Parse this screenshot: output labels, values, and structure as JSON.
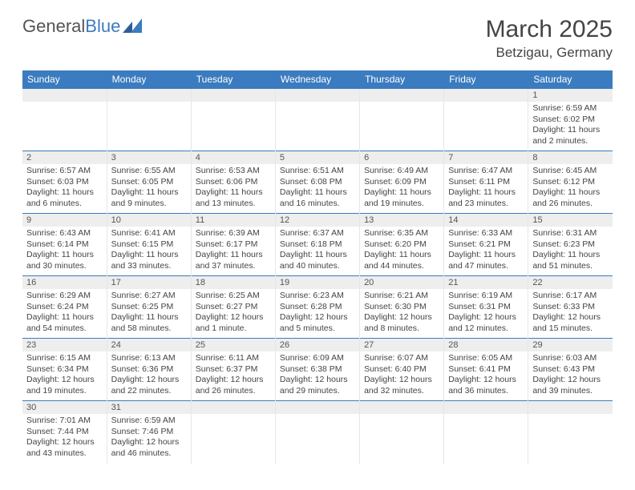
{
  "brand": {
    "part1": "General",
    "part2": "Blue"
  },
  "title": {
    "month": "March 2025",
    "location": "Betzigau, Germany"
  },
  "colors": {
    "accent": "#3b7bbf",
    "dayHeaderBg": "#eeeeee",
    "text": "#444"
  },
  "dayHeaders": [
    "Sunday",
    "Monday",
    "Tuesday",
    "Wednesday",
    "Thursday",
    "Friday",
    "Saturday"
  ],
  "weeks": [
    [
      {
        "blank": true
      },
      {
        "blank": true
      },
      {
        "blank": true
      },
      {
        "blank": true
      },
      {
        "blank": true
      },
      {
        "blank": true
      },
      {
        "n": "1",
        "sr": "Sunrise: 6:59 AM",
        "ss": "Sunset: 6:02 PM",
        "dl": "Daylight: 11 hours and 2 minutes."
      }
    ],
    [
      {
        "n": "2",
        "sr": "Sunrise: 6:57 AM",
        "ss": "Sunset: 6:03 PM",
        "dl": "Daylight: 11 hours and 6 minutes."
      },
      {
        "n": "3",
        "sr": "Sunrise: 6:55 AM",
        "ss": "Sunset: 6:05 PM",
        "dl": "Daylight: 11 hours and 9 minutes."
      },
      {
        "n": "4",
        "sr": "Sunrise: 6:53 AM",
        "ss": "Sunset: 6:06 PM",
        "dl": "Daylight: 11 hours and 13 minutes."
      },
      {
        "n": "5",
        "sr": "Sunrise: 6:51 AM",
        "ss": "Sunset: 6:08 PM",
        "dl": "Daylight: 11 hours and 16 minutes."
      },
      {
        "n": "6",
        "sr": "Sunrise: 6:49 AM",
        "ss": "Sunset: 6:09 PM",
        "dl": "Daylight: 11 hours and 19 minutes."
      },
      {
        "n": "7",
        "sr": "Sunrise: 6:47 AM",
        "ss": "Sunset: 6:11 PM",
        "dl": "Daylight: 11 hours and 23 minutes."
      },
      {
        "n": "8",
        "sr": "Sunrise: 6:45 AM",
        "ss": "Sunset: 6:12 PM",
        "dl": "Daylight: 11 hours and 26 minutes."
      }
    ],
    [
      {
        "n": "9",
        "sr": "Sunrise: 6:43 AM",
        "ss": "Sunset: 6:14 PM",
        "dl": "Daylight: 11 hours and 30 minutes."
      },
      {
        "n": "10",
        "sr": "Sunrise: 6:41 AM",
        "ss": "Sunset: 6:15 PM",
        "dl": "Daylight: 11 hours and 33 minutes."
      },
      {
        "n": "11",
        "sr": "Sunrise: 6:39 AM",
        "ss": "Sunset: 6:17 PM",
        "dl": "Daylight: 11 hours and 37 minutes."
      },
      {
        "n": "12",
        "sr": "Sunrise: 6:37 AM",
        "ss": "Sunset: 6:18 PM",
        "dl": "Daylight: 11 hours and 40 minutes."
      },
      {
        "n": "13",
        "sr": "Sunrise: 6:35 AM",
        "ss": "Sunset: 6:20 PM",
        "dl": "Daylight: 11 hours and 44 minutes."
      },
      {
        "n": "14",
        "sr": "Sunrise: 6:33 AM",
        "ss": "Sunset: 6:21 PM",
        "dl": "Daylight: 11 hours and 47 minutes."
      },
      {
        "n": "15",
        "sr": "Sunrise: 6:31 AM",
        "ss": "Sunset: 6:23 PM",
        "dl": "Daylight: 11 hours and 51 minutes."
      }
    ],
    [
      {
        "n": "16",
        "sr": "Sunrise: 6:29 AM",
        "ss": "Sunset: 6:24 PM",
        "dl": "Daylight: 11 hours and 54 minutes."
      },
      {
        "n": "17",
        "sr": "Sunrise: 6:27 AM",
        "ss": "Sunset: 6:25 PM",
        "dl": "Daylight: 11 hours and 58 minutes."
      },
      {
        "n": "18",
        "sr": "Sunrise: 6:25 AM",
        "ss": "Sunset: 6:27 PM",
        "dl": "Daylight: 12 hours and 1 minute."
      },
      {
        "n": "19",
        "sr": "Sunrise: 6:23 AM",
        "ss": "Sunset: 6:28 PM",
        "dl": "Daylight: 12 hours and 5 minutes."
      },
      {
        "n": "20",
        "sr": "Sunrise: 6:21 AM",
        "ss": "Sunset: 6:30 PM",
        "dl": "Daylight: 12 hours and 8 minutes."
      },
      {
        "n": "21",
        "sr": "Sunrise: 6:19 AM",
        "ss": "Sunset: 6:31 PM",
        "dl": "Daylight: 12 hours and 12 minutes."
      },
      {
        "n": "22",
        "sr": "Sunrise: 6:17 AM",
        "ss": "Sunset: 6:33 PM",
        "dl": "Daylight: 12 hours and 15 minutes."
      }
    ],
    [
      {
        "n": "23",
        "sr": "Sunrise: 6:15 AM",
        "ss": "Sunset: 6:34 PM",
        "dl": "Daylight: 12 hours and 19 minutes."
      },
      {
        "n": "24",
        "sr": "Sunrise: 6:13 AM",
        "ss": "Sunset: 6:36 PM",
        "dl": "Daylight: 12 hours and 22 minutes."
      },
      {
        "n": "25",
        "sr": "Sunrise: 6:11 AM",
        "ss": "Sunset: 6:37 PM",
        "dl": "Daylight: 12 hours and 26 minutes."
      },
      {
        "n": "26",
        "sr": "Sunrise: 6:09 AM",
        "ss": "Sunset: 6:38 PM",
        "dl": "Daylight: 12 hours and 29 minutes."
      },
      {
        "n": "27",
        "sr": "Sunrise: 6:07 AM",
        "ss": "Sunset: 6:40 PM",
        "dl": "Daylight: 12 hours and 32 minutes."
      },
      {
        "n": "28",
        "sr": "Sunrise: 6:05 AM",
        "ss": "Sunset: 6:41 PM",
        "dl": "Daylight: 12 hours and 36 minutes."
      },
      {
        "n": "29",
        "sr": "Sunrise: 6:03 AM",
        "ss": "Sunset: 6:43 PM",
        "dl": "Daylight: 12 hours and 39 minutes."
      }
    ],
    [
      {
        "n": "30",
        "sr": "Sunrise: 7:01 AM",
        "ss": "Sunset: 7:44 PM",
        "dl": "Daylight: 12 hours and 43 minutes."
      },
      {
        "n": "31",
        "sr": "Sunrise: 6:59 AM",
        "ss": "Sunset: 7:46 PM",
        "dl": "Daylight: 12 hours and 46 minutes."
      },
      {
        "blank": true
      },
      {
        "blank": true
      },
      {
        "blank": true
      },
      {
        "blank": true
      },
      {
        "blank": true
      }
    ]
  ]
}
